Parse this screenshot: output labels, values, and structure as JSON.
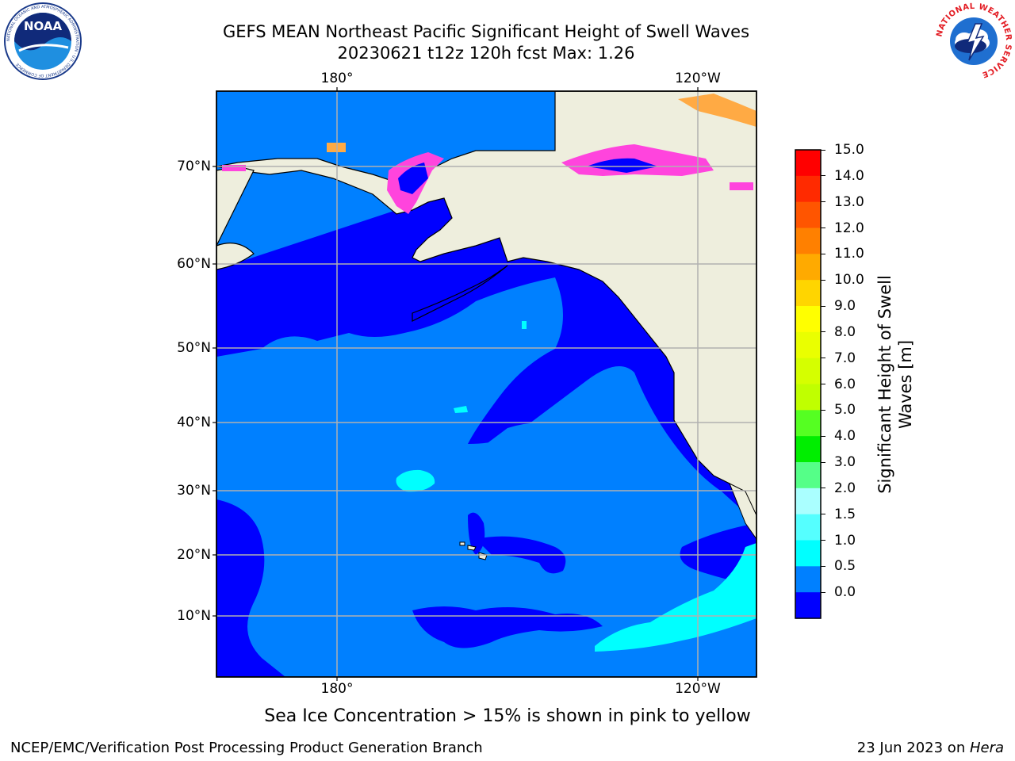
{
  "header": {
    "title_line1": "GEFS MEAN Northeast Pacific Significant Height of Swell Waves",
    "title_line2": "20230621 t12z 120h fcst   Max: 1.26"
  },
  "logos": {
    "left": "NOAA",
    "left_ring_text": "NATIONAL OCEANIC AND ATMOSPHERIC ADMINISTRATION · U.S. DEPARTMENT OF COMMERCE",
    "right_ring_text": "NATIONAL WEATHER SERVICE"
  },
  "map": {
    "top_lon_labels": [
      "180°",
      "120°W"
    ],
    "bottom_lon_labels": [
      "180°",
      "120°W"
    ],
    "lat_labels": [
      "70°N",
      "60°N",
      "50°N",
      "40°N",
      "30°N",
      "20°N",
      "10°N"
    ],
    "colors": {
      "land": "#eeeedd",
      "sea_0_0.5": "#0000ff",
      "sea_0.5_1.0": "#0080ff",
      "sea_1.0_1.5": "#00ffff",
      "ice_pink": "#ff44dd",
      "ice_orange": "#ffaa44"
    }
  },
  "colorbar": {
    "label_line1": "Significant Height of Swell",
    "label_line2": "Waves [m]",
    "ticks": [
      "15.0",
      "14.0",
      "13.0",
      "12.0",
      "11.0",
      "10.0",
      "9.0",
      "8.0",
      "7.0",
      "6.0",
      "5.0",
      "4.0",
      "3.0",
      "2.0",
      "1.5",
      "1.0",
      "0.5",
      "0.0"
    ],
    "colors_top_to_bottom": [
      "#ff0000",
      "#ff2a00",
      "#ff5500",
      "#ff8000",
      "#ffaa00",
      "#ffd500",
      "#ffff00",
      "#eaff00",
      "#d5ff00",
      "#c0ff00",
      "#55ff22",
      "#00ee00",
      "#55ff88",
      "#aaffff",
      "#55ffff",
      "#00ffff",
      "#0080ff",
      "#0000ff"
    ]
  },
  "caption": "Sea Ice Concentration > 15% is shown in pink to yellow",
  "footer": {
    "left": "NCEP/EMC/Verification Post Processing Product Generation Branch",
    "right_prefix": "23 Jun 2023 on ",
    "right_host": "Hera"
  }
}
